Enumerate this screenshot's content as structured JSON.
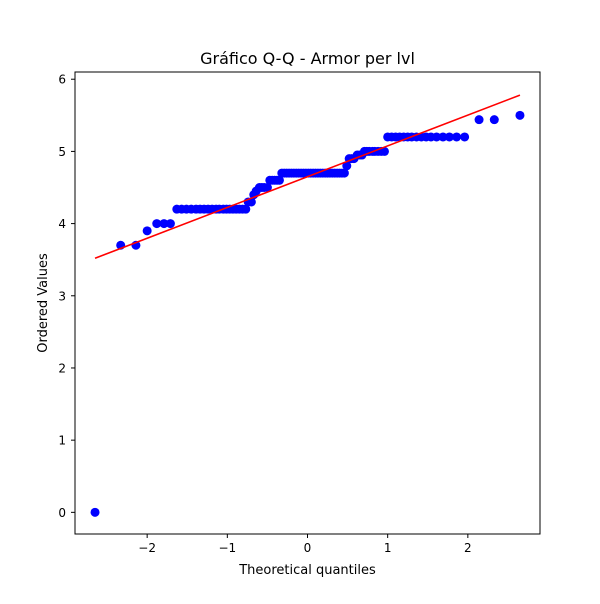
{
  "chart_data": {
    "type": "scatter",
    "title": "Gráfico Q-Q - Armor per lvl",
    "xlabel": "Theoretical quantiles",
    "ylabel": "Ordered Values",
    "xlim": [
      -2.9,
      2.9
    ],
    "ylim": [
      -0.3,
      6.1
    ],
    "xticks": [
      -2,
      -1,
      0,
      1,
      2
    ],
    "xtick_labels": [
      "−2",
      "−1",
      "0",
      "1",
      "2"
    ],
    "yticks": [
      0,
      1,
      2,
      3,
      4,
      5,
      6
    ],
    "ytick_labels": [
      "0",
      "1",
      "2",
      "3",
      "4",
      "5",
      "6"
    ],
    "grid": false,
    "series": [
      {
        "kind": "points",
        "color": "#0000ff",
        "points": [
          [
            -2.65,
            0.0
          ],
          [
            -2.33,
            3.7
          ],
          [
            -2.14,
            3.7
          ],
          [
            -2.0,
            3.9
          ],
          [
            -1.88,
            4.0
          ],
          [
            -1.79,
            4.0
          ],
          [
            -1.71,
            4.0
          ],
          [
            -1.63,
            4.2
          ],
          [
            -1.57,
            4.2
          ],
          [
            -1.51,
            4.2
          ],
          [
            -1.45,
            4.2
          ],
          [
            -1.39,
            4.2
          ],
          [
            -1.34,
            4.2
          ],
          [
            -1.29,
            4.2
          ],
          [
            -1.24,
            4.2
          ],
          [
            -1.19,
            4.2
          ],
          [
            -1.14,
            4.2
          ],
          [
            -1.1,
            4.2
          ],
          [
            -1.05,
            4.2
          ],
          [
            -1.01,
            4.2
          ],
          [
            -0.97,
            4.2
          ],
          [
            -0.93,
            4.2
          ],
          [
            -0.89,
            4.2
          ],
          [
            -0.85,
            4.2
          ],
          [
            -0.81,
            4.2
          ],
          [
            -0.77,
            4.2
          ],
          [
            -0.74,
            4.3
          ],
          [
            -0.7,
            4.3
          ],
          [
            -0.67,
            4.4
          ],
          [
            -0.64,
            4.45
          ],
          [
            -0.6,
            4.5
          ],
          [
            -0.57,
            4.5
          ],
          [
            -0.54,
            4.5
          ],
          [
            -0.5,
            4.5
          ],
          [
            -0.47,
            4.6
          ],
          [
            -0.44,
            4.6
          ],
          [
            -0.41,
            4.6
          ],
          [
            -0.38,
            4.6
          ],
          [
            -0.35,
            4.6
          ],
          [
            -0.32,
            4.7
          ],
          [
            -0.29,
            4.7
          ],
          [
            -0.26,
            4.7
          ],
          [
            -0.23,
            4.7
          ],
          [
            -0.2,
            4.7
          ],
          [
            -0.17,
            4.7
          ],
          [
            -0.14,
            4.7
          ],
          [
            -0.11,
            4.7
          ],
          [
            -0.08,
            4.7
          ],
          [
            -0.05,
            4.7
          ],
          [
            -0.02,
            4.7
          ],
          [
            0.01,
            4.7
          ],
          [
            0.04,
            4.7
          ],
          [
            0.07,
            4.7
          ],
          [
            0.1,
            4.7
          ],
          [
            0.13,
            4.7
          ],
          [
            0.16,
            4.7
          ],
          [
            0.19,
            4.7
          ],
          [
            0.22,
            4.7
          ],
          [
            0.25,
            4.7
          ],
          [
            0.28,
            4.7
          ],
          [
            0.31,
            4.7
          ],
          [
            0.34,
            4.7
          ],
          [
            0.37,
            4.7
          ],
          [
            0.4,
            4.7
          ],
          [
            0.43,
            4.7
          ],
          [
            0.46,
            4.7
          ],
          [
            0.49,
            4.8
          ],
          [
            0.52,
            4.9
          ],
          [
            0.55,
            4.9
          ],
          [
            0.58,
            4.9
          ],
          [
            0.62,
            4.95
          ],
          [
            0.65,
            4.95
          ],
          [
            0.68,
            4.95
          ],
          [
            0.71,
            5.0
          ],
          [
            0.74,
            5.0
          ],
          [
            0.77,
            5.0
          ],
          [
            0.81,
            5.0
          ],
          [
            0.84,
            5.0
          ],
          [
            0.88,
            5.0
          ],
          [
            0.92,
            5.0
          ],
          [
            0.96,
            5.0
          ],
          [
            1.0,
            5.2
          ],
          [
            1.05,
            5.2
          ],
          [
            1.1,
            5.2
          ],
          [
            1.15,
            5.2
          ],
          [
            1.2,
            5.2
          ],
          [
            1.25,
            5.2
          ],
          [
            1.3,
            5.2
          ],
          [
            1.36,
            5.2
          ],
          [
            1.42,
            5.2
          ],
          [
            1.48,
            5.2
          ],
          [
            1.54,
            5.2
          ],
          [
            1.61,
            5.2
          ],
          [
            1.69,
            5.2
          ],
          [
            1.77,
            5.2
          ],
          [
            1.86,
            5.2
          ],
          [
            1.96,
            5.2
          ],
          [
            2.14,
            5.44
          ],
          [
            2.33,
            5.44
          ],
          [
            2.65,
            5.5
          ]
        ]
      },
      {
        "kind": "fit-line",
        "color": "#ff0000",
        "points": [
          [
            -2.65,
            3.52
          ],
          [
            2.65,
            5.78
          ]
        ]
      }
    ]
  }
}
